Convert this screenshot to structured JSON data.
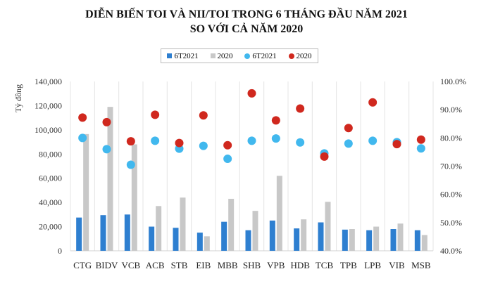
{
  "chart_data": {
    "type": "bar",
    "title": "DIỄN BIẾN TOI VÀ NII/TOI TRONG 6 THÁNG ĐẦU NĂM 2021",
    "subtitle": "SO VỚI CẢ NĂM 2020",
    "ylabel": "Tỷ đồng",
    "ylim": [
      0,
      140000
    ],
    "yticks": [
      "0",
      "20,000",
      "40,000",
      "60,000",
      "80,000",
      "100,000",
      "120,000",
      "140,000"
    ],
    "y2lim": [
      40,
      100
    ],
    "y2ticks": [
      "40.0%",
      "50.0%",
      "60.0%",
      "70.0%",
      "80.0%",
      "90.0%",
      "100.0%"
    ],
    "grid": "vertical",
    "legend_position": "top",
    "categories": [
      "CTG",
      "BIDV",
      "VCB",
      "ACB",
      "STB",
      "EIB",
      "MBB",
      "SHB",
      "VPB",
      "HDB",
      "TCB",
      "TPB",
      "LPB",
      "VIB",
      "MSB"
    ],
    "series": [
      {
        "name": "6T2021",
        "kind": "bar",
        "axis": "left",
        "color": "#2e7fd0",
        "values": [
          27500,
          29500,
          30000,
          20000,
          19000,
          15000,
          24000,
          17000,
          25000,
          18500,
          23500,
          17500,
          17000,
          18000,
          17000
        ]
      },
      {
        "name": "2020",
        "kind": "bar",
        "axis": "left",
        "color": "#c8c8c8",
        "values": [
          96500,
          119000,
          88000,
          37000,
          44000,
          12000,
          43000,
          33000,
          62000,
          26000,
          40500,
          18000,
          20000,
          22500,
          13000
        ]
      },
      {
        "name": "6T2021",
        "kind": "scatter",
        "axis": "right",
        "color": "#41b8ee",
        "values": [
          80.0,
          76.0,
          70.5,
          79.0,
          76.2,
          77.2,
          72.6,
          79.0,
          79.8,
          78.4,
          74.5,
          78.0,
          79.0,
          78.5,
          76.3
        ]
      },
      {
        "name": "2020",
        "kind": "scatter",
        "axis": "right",
        "color": "#d0281e",
        "values": [
          87.2,
          85.6,
          78.8,
          88.2,
          78.2,
          88.0,
          77.4,
          95.8,
          86.2,
          90.4,
          73.4,
          83.5,
          92.6,
          77.8,
          79.4
        ]
      }
    ]
  }
}
